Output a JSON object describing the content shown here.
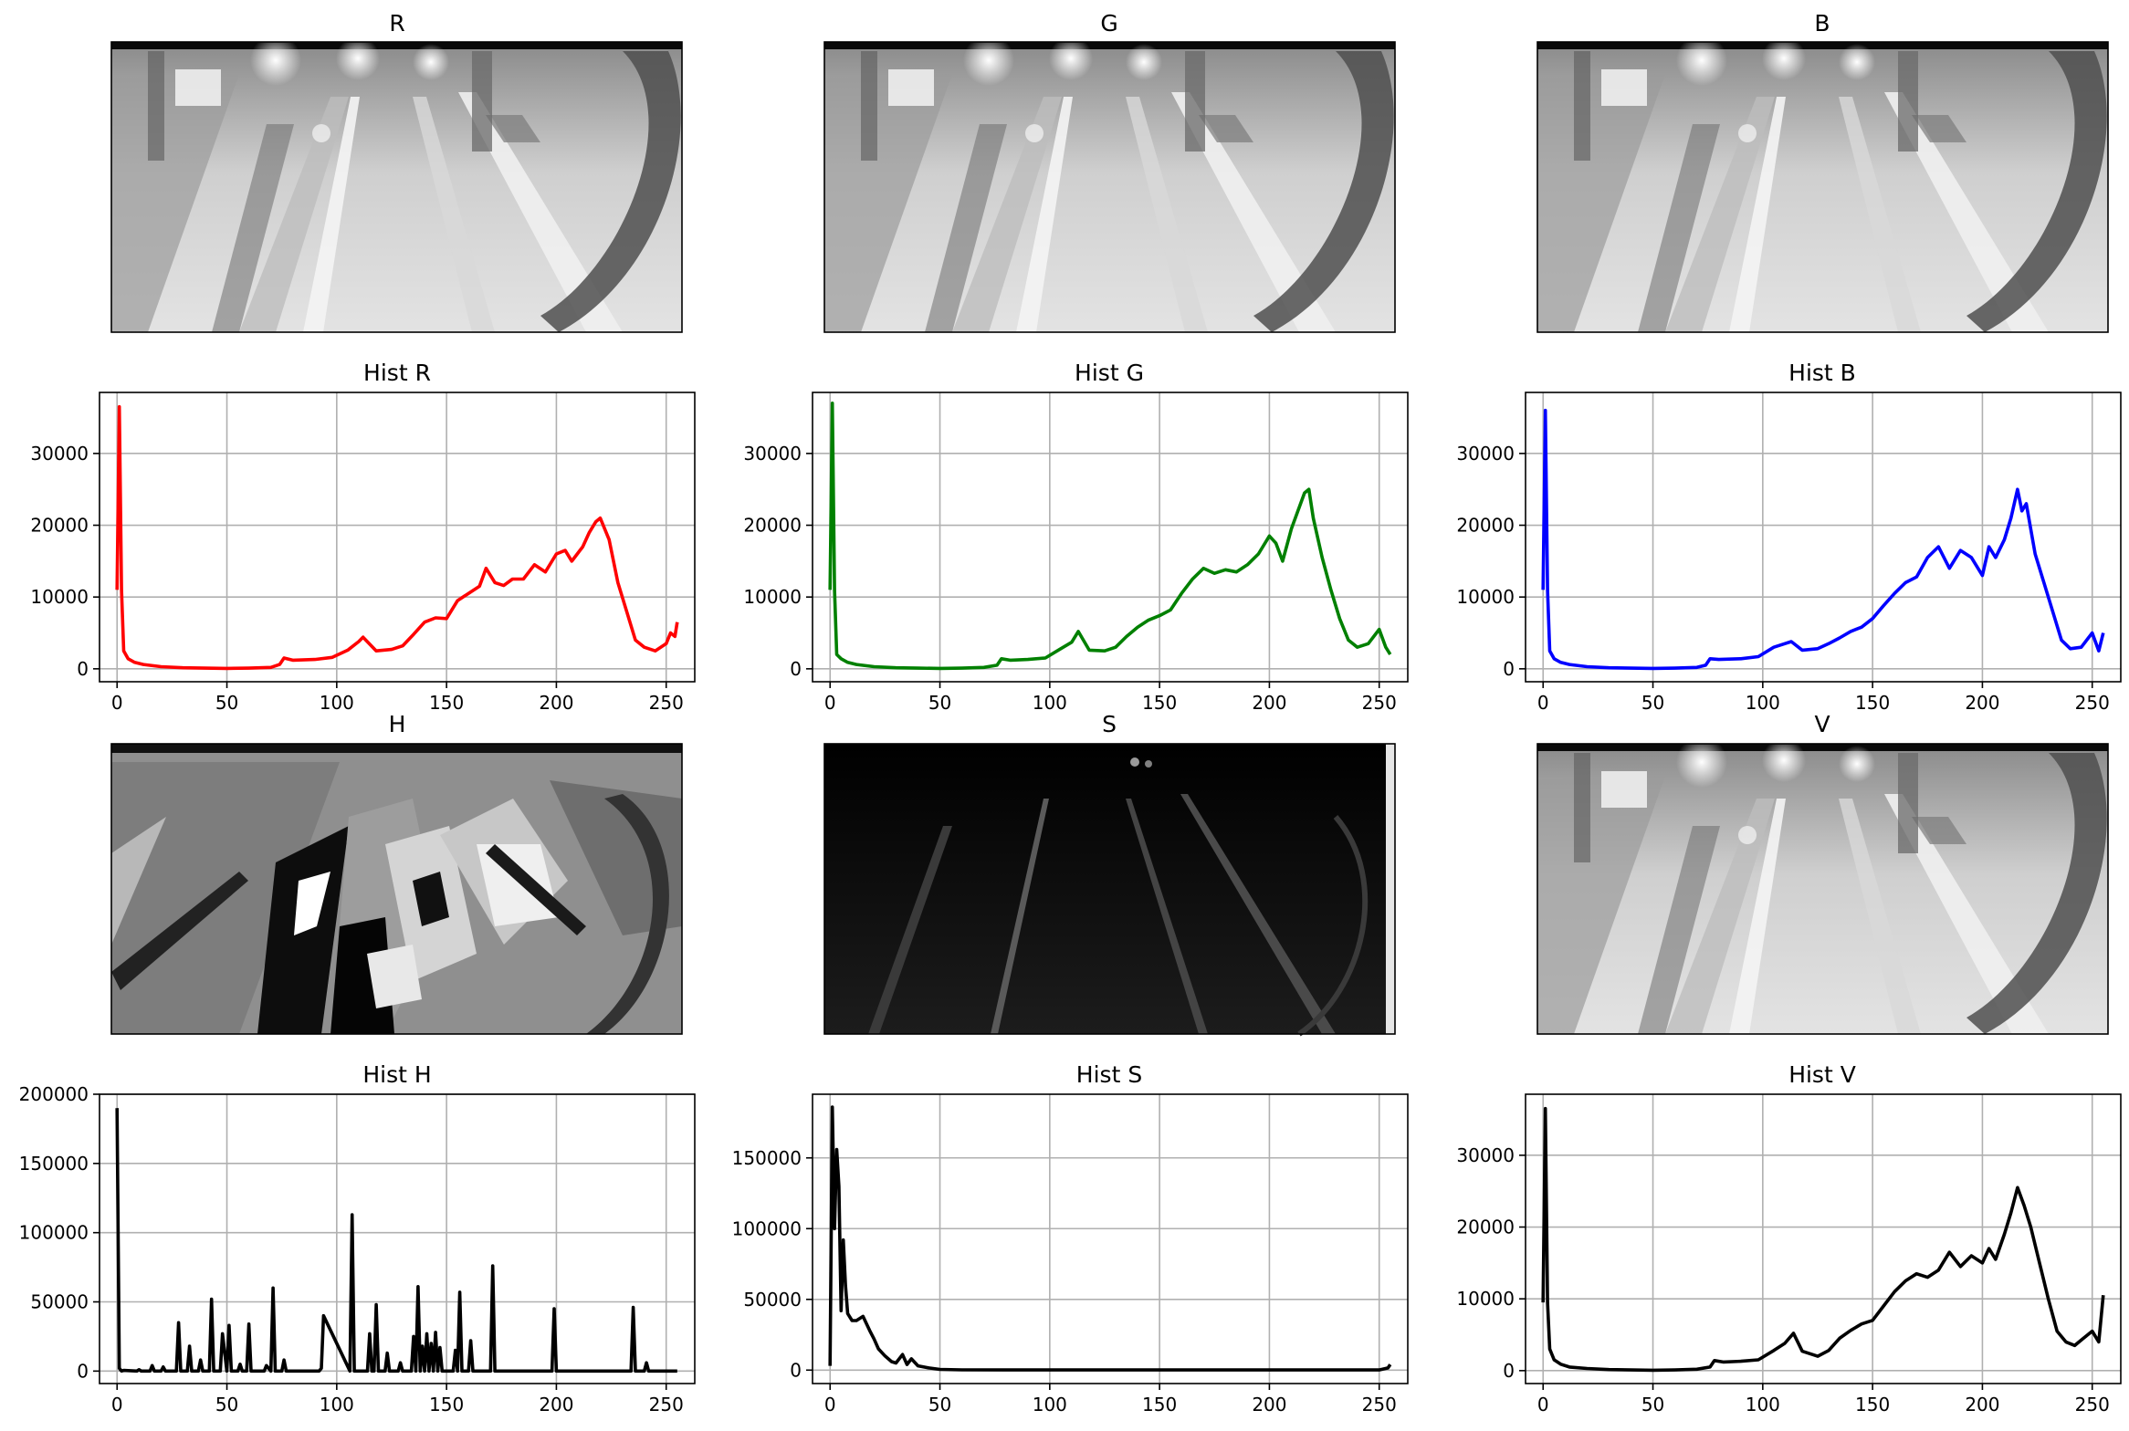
{
  "figure": {
    "titles": {
      "r": "R",
      "g": "G",
      "b": "B",
      "hist_r": "Hist R",
      "hist_g": "Hist G",
      "hist_b": "Hist B",
      "h": "H",
      "s": "S",
      "v": "V",
      "hist_h": "Hist H",
      "hist_s": "Hist S",
      "hist_v": "Hist V"
    },
    "images": [
      {
        "key": "r",
        "description_tone": "grayscale-bright"
      },
      {
        "key": "g",
        "description_tone": "grayscale-bright"
      },
      {
        "key": "b",
        "description_tone": "grayscale-bright"
      },
      {
        "key": "h",
        "description_tone": "grayscale-blocky"
      },
      {
        "key": "s",
        "description_tone": "dark"
      },
      {
        "key": "v",
        "description_tone": "grayscale-bright"
      }
    ]
  },
  "chart_data": [
    {
      "type": "line",
      "title": "Hist R",
      "color": "#ff0000",
      "xlim": [
        -8,
        263
      ],
      "ylim": [
        -1800,
        38500
      ],
      "xticks": [
        0,
        50,
        100,
        150,
        200,
        250
      ],
      "yticks": [
        0,
        10000,
        20000,
        30000
      ],
      "grid": true,
      "x": [
        0,
        1,
        2,
        3,
        5,
        8,
        12,
        20,
        30,
        40,
        50,
        60,
        70,
        74,
        76,
        80,
        90,
        98,
        105,
        110,
        112,
        118,
        125,
        130,
        135,
        140,
        145,
        150,
        155,
        160,
        165,
        168,
        172,
        176,
        180,
        185,
        190,
        195,
        200,
        204,
        207,
        212,
        215,
        218,
        220,
        224,
        228,
        232,
        236,
        240,
        245,
        250,
        252,
        254,
        255
      ],
      "y": [
        11000,
        36500,
        11000,
        2500,
        1400,
        900,
        600,
        300,
        150,
        100,
        50,
        100,
        200,
        600,
        1500,
        1200,
        1300,
        1600,
        2600,
        3800,
        4400,
        2500,
        2700,
        3200,
        4800,
        6500,
        7100,
        7000,
        9500,
        10500,
        11500,
        14000,
        12000,
        11600,
        12500,
        12500,
        14500,
        13500,
        16000,
        16500,
        15000,
        17000,
        19000,
        20500,
        21000,
        18000,
        12000,
        8000,
        4000,
        3000,
        2500,
        3500,
        5000,
        4500,
        6500
      ]
    },
    {
      "type": "line",
      "title": "Hist G",
      "color": "#008000",
      "xlim": [
        -8,
        263
      ],
      "ylim": [
        -1800,
        38500
      ],
      "xticks": [
        0,
        50,
        100,
        150,
        200,
        250
      ],
      "yticks": [
        0,
        10000,
        20000,
        30000
      ],
      "grid": true,
      "x": [
        0,
        1,
        2,
        3,
        5,
        8,
        12,
        20,
        30,
        40,
        50,
        60,
        70,
        76,
        78,
        82,
        90,
        98,
        105,
        110,
        113,
        118,
        125,
        130,
        135,
        140,
        145,
        150,
        155,
        160,
        165,
        170,
        175,
        180,
        185,
        190,
        195,
        200,
        203,
        206,
        210,
        213,
        216,
        218,
        220,
        224,
        228,
        232,
        236,
        240,
        245,
        250,
        253,
        255
      ],
      "y": [
        11000,
        37000,
        11000,
        2000,
        1400,
        900,
        600,
        300,
        150,
        100,
        50,
        100,
        200,
        500,
        1400,
        1200,
        1300,
        1500,
        2800,
        3700,
        5200,
        2600,
        2500,
        3000,
        4500,
        5800,
        6800,
        7400,
        8200,
        10500,
        12500,
        14000,
        13300,
        13800,
        13500,
        14500,
        16000,
        18500,
        17500,
        15000,
        19500,
        22000,
        24500,
        25000,
        21000,
        15500,
        11000,
        7000,
        4000,
        3000,
        3500,
        5500,
        3000,
        2000
      ]
    },
    {
      "type": "line",
      "title": "Hist B",
      "color": "#0000ff",
      "xlim": [
        -8,
        263
      ],
      "ylim": [
        -1800,
        38500
      ],
      "xticks": [
        0,
        50,
        100,
        150,
        200,
        250
      ],
      "yticks": [
        0,
        10000,
        20000,
        30000
      ],
      "grid": true,
      "x": [
        0,
        1,
        2,
        3,
        5,
        8,
        12,
        20,
        30,
        40,
        50,
        60,
        70,
        74,
        76,
        80,
        90,
        98,
        105,
        110,
        113,
        118,
        125,
        130,
        135,
        140,
        145,
        150,
        155,
        160,
        165,
        170,
        175,
        180,
        185,
        190,
        195,
        200,
        203,
        206,
        210,
        213,
        216,
        218,
        220,
        224,
        228,
        232,
        236,
        240,
        245,
        250,
        253,
        255
      ],
      "y": [
        11000,
        36000,
        11000,
        2500,
        1400,
        900,
        600,
        300,
        150,
        100,
        50,
        100,
        200,
        500,
        1400,
        1300,
        1400,
        1700,
        3000,
        3500,
        3800,
        2600,
        2800,
        3500,
        4300,
        5200,
        5800,
        7000,
        8800,
        10500,
        12000,
        12800,
        15500,
        17000,
        14000,
        16500,
        15500,
        13000,
        17000,
        15500,
        18000,
        21000,
        25000,
        22000,
        23000,
        16000,
        12000,
        8000,
        4000,
        2800,
        3000,
        5000,
        2500,
        5000
      ]
    },
    {
      "type": "line",
      "title": "Hist H",
      "color": "#000000",
      "xlim": [
        -8,
        263
      ],
      "ylim": [
        -9000,
        200000
      ],
      "xticks": [
        0,
        50,
        100,
        150,
        200,
        250
      ],
      "yticks": [
        0,
        50000,
        100000,
        150000,
        200000
      ],
      "grid": true,
      "x": [
        0,
        1,
        2,
        3,
        9,
        10,
        11,
        15,
        16,
        17,
        20,
        21,
        22,
        27,
        28,
        29,
        32,
        33,
        34,
        37,
        38,
        39,
        42,
        43,
        44,
        47,
        48,
        50,
        51,
        52,
        55,
        56,
        57,
        59,
        60,
        61,
        67,
        68,
        70,
        71,
        72,
        75,
        76,
        77,
        90,
        92,
        93,
        94,
        106,
        107,
        108,
        114,
        115,
        116,
        117,
        118,
        119,
        122,
        123,
        124,
        128,
        129,
        130,
        134,
        135,
        136,
        137,
        138,
        139,
        140,
        141,
        142,
        143,
        144,
        145,
        146,
        147,
        148,
        152,
        153,
        154,
        155,
        156,
        157,
        160,
        161,
        162,
        170,
        171,
        172,
        198,
        199,
        200,
        234,
        235,
        236,
        240,
        241,
        242,
        255
      ],
      "y": [
        190000,
        2000,
        0,
        500,
        0,
        1000,
        0,
        0,
        4000,
        0,
        0,
        3000,
        0,
        0,
        35000,
        0,
        0,
        18000,
        0,
        0,
        8000,
        0,
        0,
        52000,
        0,
        0,
        27000,
        0,
        33000,
        0,
        0,
        5000,
        0,
        0,
        34000,
        0,
        0,
        4000,
        0,
        60000,
        0,
        0,
        8000,
        0,
        0,
        0,
        2000,
        40000,
        0,
        113000,
        0,
        0,
        27000,
        0,
        0,
        48000,
        0,
        0,
        13000,
        0,
        0,
        6000,
        0,
        0,
        25000,
        0,
        61000,
        0,
        18000,
        0,
        27000,
        0,
        20000,
        0,
        28000,
        0,
        17000,
        0,
        0,
        0,
        15000,
        0,
        57000,
        0,
        0,
        22000,
        0,
        0,
        76000,
        0,
        0,
        45000,
        0,
        0,
        46000,
        0,
        0,
        6000,
        0,
        0
      ]
    },
    {
      "type": "line",
      "title": "Hist S",
      "color": "#000000",
      "xlim": [
        -8,
        263
      ],
      "ylim": [
        -9500,
        195000
      ],
      "xticks": [
        0,
        50,
        100,
        150,
        200,
        250
      ],
      "yticks": [
        0,
        50000,
        100000,
        150000
      ],
      "grid": true,
      "x": [
        0,
        1,
        2,
        3,
        4,
        5,
        6,
        7,
        8,
        10,
        12,
        15,
        18,
        20,
        22,
        25,
        28,
        30,
        33,
        35,
        37,
        40,
        45,
        50,
        60,
        80,
        100,
        150,
        200,
        250,
        254,
        255
      ],
      "y": [
        3000,
        186000,
        100000,
        156000,
        130000,
        42000,
        92000,
        60000,
        40000,
        35000,
        35000,
        38000,
        28000,
        22000,
        15000,
        10000,
        6000,
        5000,
        11000,
        4000,
        8000,
        3000,
        1500,
        500,
        200,
        100,
        100,
        100,
        100,
        100,
        1500,
        4000
      ]
    },
    {
      "type": "line",
      "title": "Hist V",
      "color": "#000000",
      "xlim": [
        -8,
        263
      ],
      "ylim": [
        -1800,
        38500
      ],
      "xticks": [
        0,
        50,
        100,
        150,
        200,
        250
      ],
      "yticks": [
        0,
        10000,
        20000,
        30000
      ],
      "grid": true,
      "x": [
        0,
        1,
        2,
        3,
        5,
        8,
        12,
        20,
        30,
        40,
        50,
        60,
        70,
        76,
        78,
        82,
        90,
        98,
        105,
        110,
        114,
        118,
        125,
        130,
        135,
        140,
        145,
        150,
        155,
        160,
        165,
        170,
        175,
        180,
        185,
        190,
        195,
        200,
        203,
        206,
        210,
        213,
        216,
        219,
        222,
        226,
        230,
        234,
        238,
        242,
        246,
        250,
        253,
        255
      ],
      "y": [
        9500,
        36500,
        9500,
        3000,
        1500,
        900,
        500,
        300,
        150,
        100,
        50,
        100,
        200,
        500,
        1400,
        1200,
        1300,
        1500,
        2800,
        3800,
        5200,
        2700,
        2000,
        2800,
        4500,
        5600,
        6500,
        7000,
        9000,
        11000,
        12500,
        13500,
        13000,
        14000,
        16500,
        14500,
        16000,
        15000,
        17000,
        15500,
        19000,
        22000,
        25500,
        23000,
        20000,
        15000,
        10000,
        5500,
        4000,
        3500,
        4500,
        5500,
        4000,
        10500
      ]
    }
  ]
}
